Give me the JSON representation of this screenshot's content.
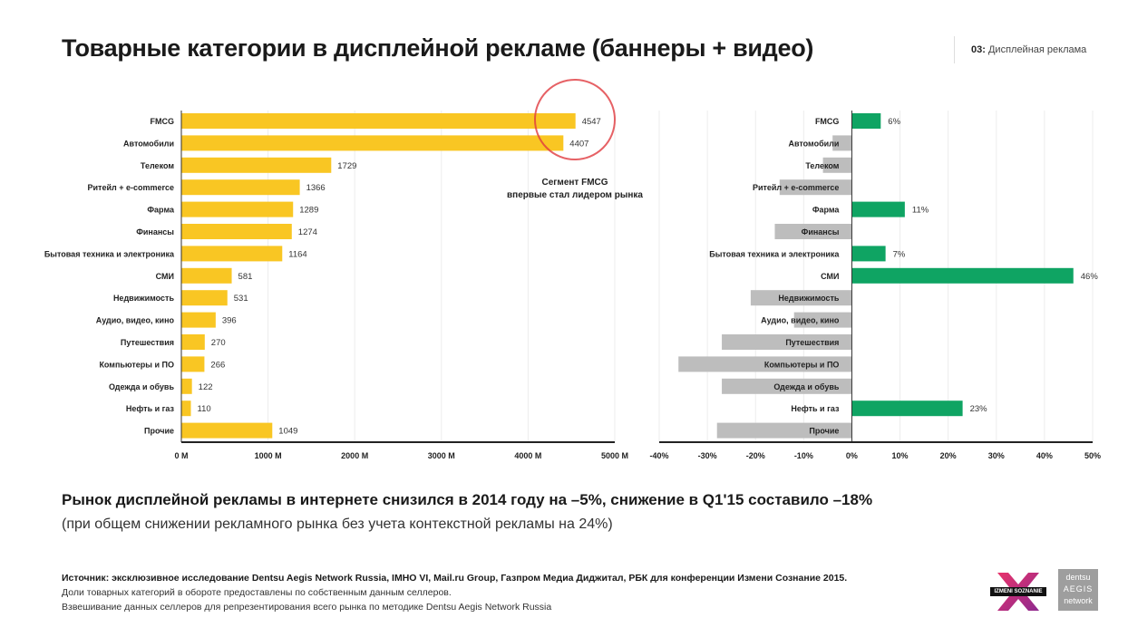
{
  "header": {
    "title": "Товарные категории в дисплейной рекламе (баннеры + видео)",
    "section_number": "03:",
    "section_name": "Дисплейная реклама"
  },
  "chart_data": [
    {
      "type": "bar",
      "orientation": "horizontal",
      "categories": [
        "FMCG",
        "Автомобили",
        "Телеком",
        "Ритейл + e-commerce",
        "Фарма",
        "Финансы",
        "Бытовая техника и электроника",
        "СМИ",
        "Недвижимость",
        "Аудио, видео, кино",
        "Путешествия",
        "Компьютеры и ПО",
        "Одежда и обувь",
        "Нефть и газ",
        "Прочие"
      ],
      "values": [
        4547,
        4407,
        1729,
        1366,
        1289,
        1274,
        1164,
        581,
        531,
        396,
        270,
        266,
        122,
        110,
        1049
      ],
      "labels": [
        "4547",
        "4407",
        "1729",
        "1366",
        "1289",
        "1274",
        "1164",
        "581",
        "531",
        "396",
        "270",
        "266",
        "122",
        "110",
        "1049"
      ],
      "xlim": [
        0,
        5000
      ],
      "xticks": [
        "0 M",
        "1000 M",
        "2000 M",
        "3000 M",
        "4000 M",
        "5000 M"
      ],
      "xtick_values": [
        0,
        1000,
        2000,
        3000,
        4000,
        5000
      ],
      "color": "#F9C623",
      "grid": true,
      "annotation": {
        "line1": "Сегмент FMCG",
        "line2": "впервые стал лидером рынка",
        "circle_color": "#E0393E"
      }
    },
    {
      "type": "bar",
      "orientation": "horizontal",
      "categories": [
        "FMCG",
        "Автомобили",
        "Телеком",
        "Ритейл + e-commerce",
        "Фарма",
        "Финансы",
        "Бытовая техника и электроника",
        "СМИ",
        "Недвижимость",
        "Аудио, видео, кино",
        "Путешествия",
        "Компьютеры и ПО",
        "Одежда и обувь",
        "Нефть и газ",
        "Прочие"
      ],
      "values": [
        6,
        -4,
        -6,
        -15,
        11,
        -16,
        7,
        46,
        -21,
        -12,
        -27,
        -36,
        -27,
        23,
        -28
      ],
      "labels": [
        "6%",
        "",
        "",
        "",
        "11%",
        "",
        "7%",
        "46%",
        "",
        "",
        "",
        "",
        "",
        "23%",
        ""
      ],
      "xlim": [
        -40,
        50
      ],
      "xticks": [
        "-40%",
        "-30%",
        "-20%",
        "-10%",
        "0%",
        "10%",
        "20%",
        "30%",
        "40%",
        "50%"
      ],
      "xtick_values": [
        -40,
        -30,
        -20,
        -10,
        0,
        10,
        20,
        30,
        40,
        50
      ],
      "positive_color": "#0FA463",
      "negative_color": "#BDBDBD",
      "grid": true
    }
  ],
  "summary": {
    "headline": "Рынок дисплейной рекламы в интернете снизился в 2014 году на –5%, снижение в Q1'15 составило –18%",
    "subline": "(при общем снижении рекламного рынка без учета контекстной рекламы на 24%)"
  },
  "source": {
    "line1": "Источник: эксклюзивное исследование Dentsu Aegis Network Russia, IMHO VI, Mail.ru Group, Газпром Медиа Диджитал, РБК для конференции Измени Сознание 2015.",
    "line2": "Доли товарных категорий в обороте предоставлены по собственным данным селлеров.",
    "line3": "Взвешивание данных селлеров для репрезентирования всего рынка по методике Dentsu Aegis Network Russia"
  },
  "logos": {
    "izmeni": "IZMENI SOZNANIE",
    "dentsu_1": "dentsu",
    "dentsu_2": "AEGIS",
    "dentsu_3": "network"
  }
}
